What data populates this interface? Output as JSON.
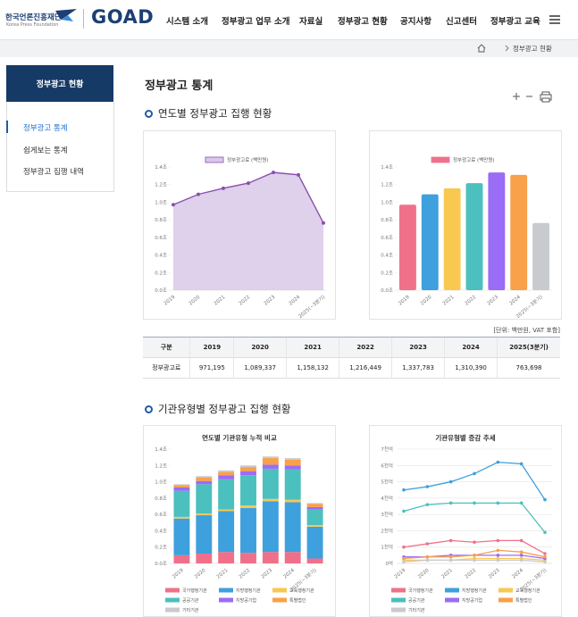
{
  "header": {
    "org_name": "한국언론진흥재단",
    "org_name_en": "Korea Press Foundation",
    "brand": "GOAD",
    "nav": [
      "시스템 소개",
      "정부광고 업무 소개",
      "자료실",
      "정부광고 현황",
      "공지사항",
      "신고센터",
      "정부광고 교육"
    ]
  },
  "breadcrumb": "정부광고 현황",
  "sidebar": {
    "title": "정부광고 현황",
    "items": [
      "정부광고 통계",
      "쉽게보는 통계",
      "정부광고 집행 내역"
    ]
  },
  "page_title": "정부광고 통계",
  "section_titles": [
    "연도별 정부광고 집행 현황",
    "기관유형별 정부광고 집행 현황"
  ],
  "unit_note": "[단위: 백만원, VAT 포함]",
  "table": {
    "header": [
      "구분",
      "2019",
      "2020",
      "2021",
      "2022",
      "2023",
      "2024",
      "2025(3분기)"
    ],
    "rows": [
      [
        "정부광고료",
        "971,195",
        "1,089,337",
        "1,158,132",
        "1,216,449",
        "1,337,783",
        "1,310,390",
        "763,698"
      ]
    ]
  },
  "chart_data": [
    {
      "type": "area",
      "legend": "top",
      "grid": false,
      "categories": [
        "2019",
        "2020",
        "2021",
        "2022",
        "2023",
        "2024",
        "2025(~3분기)"
      ],
      "series": [
        {
          "name": "정부광고료 (백만원)",
          "color": "#8a4fb0",
          "fill": "#d9c8e8",
          "values": [
            0.971195,
            1.089337,
            1.158132,
            1.216449,
            1.337783,
            1.31039,
            0.763698
          ]
        }
      ],
      "ylim": [
        0,
        1.4
      ],
      "yticks": [
        {
          "value": 0,
          "label": "0.0조"
        },
        {
          "value": 0.2,
          "label": "0.2조"
        },
        {
          "value": 0.4,
          "label": "0.4조"
        },
        {
          "value": 0.6,
          "label": "0.6조"
        },
        {
          "value": 0.8,
          "label": "0.8조"
        },
        {
          "value": 1.0,
          "label": "1.0조"
        },
        {
          "value": 1.2,
          "label": "1.2조"
        },
        {
          "value": 1.4,
          "label": "1.4조"
        }
      ]
    },
    {
      "type": "bar",
      "legend": "top",
      "grid": false,
      "categories": [
        "2019",
        "2020",
        "2021",
        "2022",
        "2023",
        "2024",
        "2025(~3분기)"
      ],
      "series": [
        {
          "name": "정부광고료 (백만원)",
          "color": "#f0708a",
          "colors": [
            "#f0708a",
            "#3ea0dd",
            "#f8c851",
            "#4cbfbf",
            "#9b6cf5",
            "#f9a04a",
            "#c8cacf"
          ],
          "values": [
            0.971195,
            1.089337,
            1.158132,
            1.216449,
            1.337783,
            1.31039,
            0.763698
          ]
        }
      ],
      "ylim": [
        0,
        1.4
      ],
      "yticks": [
        {
          "value": 0,
          "label": "0.0조"
        },
        {
          "value": 0.2,
          "label": "0.2조"
        },
        {
          "value": 0.4,
          "label": "0.4조"
        },
        {
          "value": 0.6,
          "label": "0.6조"
        },
        {
          "value": 0.8,
          "label": "0.8조"
        },
        {
          "value": 1.0,
          "label": "1.0조"
        },
        {
          "value": 1.2,
          "label": "1.2조"
        },
        {
          "value": 1.4,
          "label": "1.4조"
        }
      ]
    },
    {
      "type": "stacked_bar",
      "title": "연도별 기관유형 누적 비교",
      "legend": "bottom",
      "grid": false,
      "categories": [
        "2019",
        "2020",
        "2021",
        "2022",
        "2023",
        "2024",
        "2025(~3분기)"
      ],
      "series": [
        {
          "name": "국가행정기관",
          "color": "#f0708a",
          "values": [
            0.1,
            0.12,
            0.14,
            0.13,
            0.14,
            0.14,
            0.06
          ]
        },
        {
          "name": "지방행정기관",
          "color": "#3ea0dd",
          "values": [
            0.45,
            0.47,
            0.5,
            0.55,
            0.62,
            0.61,
            0.39
          ]
        },
        {
          "name": "교육행정기관",
          "color": "#f8c851",
          "values": [
            0.02,
            0.02,
            0.02,
            0.03,
            0.03,
            0.03,
            0.02
          ]
        },
        {
          "name": "공공기관",
          "color": "#4cbfbf",
          "values": [
            0.32,
            0.36,
            0.37,
            0.37,
            0.37,
            0.37,
            0.19
          ]
        },
        {
          "name": "지방공기업",
          "color": "#9b6cf5",
          "values": [
            0.04,
            0.04,
            0.05,
            0.05,
            0.05,
            0.05,
            0.03
          ]
        },
        {
          "name": "특별법인",
          "color": "#f9a04a",
          "values": [
            0.03,
            0.04,
            0.04,
            0.05,
            0.08,
            0.07,
            0.04
          ]
        },
        {
          "name": "기타기관",
          "color": "#c8cacf",
          "values": [
            0.01,
            0.02,
            0.02,
            0.02,
            0.02,
            0.02,
            0.01
          ]
        }
      ],
      "ylim": [
        0,
        1.4
      ],
      "yticks": [
        {
          "value": 0,
          "label": "0.0조"
        },
        {
          "value": 0.2,
          "label": "0.2조"
        },
        {
          "value": 0.4,
          "label": "0.4조"
        },
        {
          "value": 0.6,
          "label": "0.6조"
        },
        {
          "value": 0.8,
          "label": "0.8조"
        },
        {
          "value": 1.0,
          "label": "1.0조"
        },
        {
          "value": 1.2,
          "label": "1.2조"
        },
        {
          "value": 1.4,
          "label": "1.4조"
        }
      ]
    },
    {
      "type": "line",
      "title": "기관유형별 증감 추세",
      "legend": "bottom",
      "grid": true,
      "categories": [
        "2019",
        "2020",
        "2021",
        "2022",
        "2023",
        "2024",
        "2025(~3분기)"
      ],
      "series": [
        {
          "name": "국가행정기관",
          "color": "#f0708a",
          "values": [
            1.0,
            1.2,
            1.4,
            1.3,
            1.4,
            1.4,
            0.6
          ]
        },
        {
          "name": "지방행정기관",
          "color": "#3ea0dd",
          "values": [
            4.5,
            4.7,
            5.0,
            5.5,
            6.2,
            6.1,
            3.9
          ]
        },
        {
          "name": "교육행정기관",
          "color": "#f8c851",
          "values": [
            0.2,
            0.2,
            0.2,
            0.3,
            0.3,
            0.3,
            0.2
          ]
        },
        {
          "name": "공공기관",
          "color": "#4cbfbf",
          "values": [
            3.2,
            3.6,
            3.7,
            3.7,
            3.7,
            3.7,
            1.9
          ]
        },
        {
          "name": "지방공기업",
          "color": "#9b6cf5",
          "values": [
            0.4,
            0.4,
            0.5,
            0.5,
            0.5,
            0.5,
            0.3
          ]
        },
        {
          "name": "특별법인",
          "color": "#f9a04a",
          "values": [
            0.3,
            0.4,
            0.4,
            0.5,
            0.8,
            0.7,
            0.4
          ]
        },
        {
          "name": "기타기관",
          "color": "#c8cacf",
          "values": [
            0.1,
            0.2,
            0.2,
            0.2,
            0.2,
            0.2,
            0.1
          ]
        }
      ],
      "ylim": [
        0,
        7
      ],
      "yticks": [
        {
          "value": 0,
          "label": "0억"
        },
        {
          "value": 1,
          "label": "1천억"
        },
        {
          "value": 2,
          "label": "2천억"
        },
        {
          "value": 3,
          "label": "3천억"
        },
        {
          "value": 4,
          "label": "4천억"
        },
        {
          "value": 5,
          "label": "5천억"
        },
        {
          "value": 6,
          "label": "6천억"
        },
        {
          "value": 7,
          "label": "7천억"
        }
      ]
    }
  ]
}
